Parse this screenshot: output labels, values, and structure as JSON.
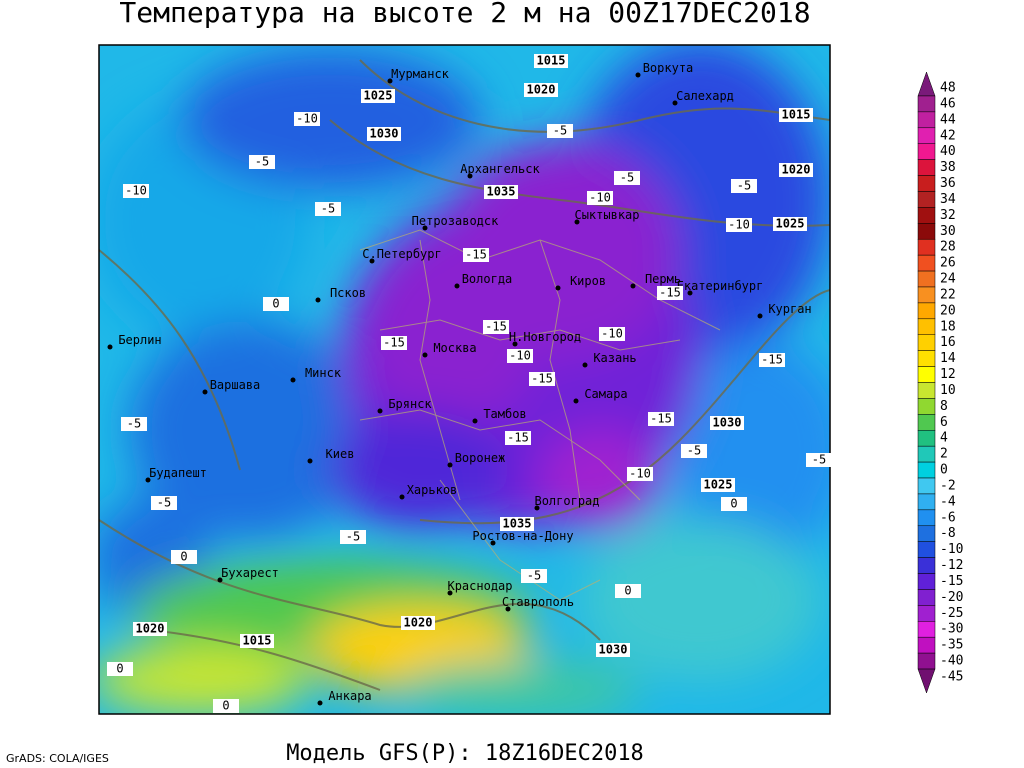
{
  "title": "Температура на высоте 2 м на 00Z17DEC2018",
  "footer_left": "GrADS: COLA/IGES",
  "footer": "Модель GFS(P): 18Z16DEC2018",
  "cities": [
    "Мурманск",
    "Воркута",
    "Салехард",
    "Архангельск",
    "Петрозаводск",
    "Сыктывкар",
    "С.Петербург",
    "Вологда",
    "Киров",
    "Пермь",
    "Екатеринбург",
    "Курган",
    "Псков",
    "Н.Новгород",
    "Берлин",
    "Москва",
    "Казань",
    "Минск",
    "Варшава",
    "Самара",
    "Брянск",
    "Тамбов",
    "Киев",
    "Воронеж",
    "Будапешт",
    "Харьков",
    "Волгоград",
    "Ростов-на-Дону",
    "Бухарест",
    "Краснодар",
    "Ставрополь",
    "Анкара"
  ],
  "isotherm_labels": [
    -10,
    -10,
    -10,
    -10,
    -10,
    -10,
    -10,
    -5,
    -5,
    -5,
    -5,
    -5,
    -5,
    -5,
    -5,
    -5,
    -5,
    -5,
    -15,
    -15,
    -15,
    -15,
    -15,
    -15,
    -15,
    -15,
    0,
    0,
    0,
    0,
    0,
    0
  ],
  "isobar_labels": [
    1015,
    1015,
    1015,
    1020,
    1020,
    1020,
    1020,
    1025,
    1025,
    1025,
    1030,
    1030,
    1030,
    1035,
    1035
  ],
  "legend": {
    "levels": [
      48,
      46,
      44,
      42,
      40,
      38,
      36,
      34,
      32,
      30,
      28,
      26,
      24,
      22,
      20,
      18,
      16,
      14,
      12,
      10,
      8,
      6,
      4,
      2,
      0,
      -2,
      -4,
      -6,
      -8,
      -10,
      -12,
      -15,
      -20,
      -25,
      -30,
      -35,
      -40,
      -45
    ],
    "colors": [
      "#7a1a7a",
      "#a0208f",
      "#c020a0",
      "#e020b0",
      "#f01890",
      "#dc143c",
      "#c81e1e",
      "#b22222",
      "#a01010",
      "#8b0a0a",
      "#e03020",
      "#f05020",
      "#f07020",
      "#f89020",
      "#ffa800",
      "#ffc000",
      "#ffd000",
      "#ffe000",
      "#ffff00",
      "#c8e630",
      "#90d830",
      "#50c850",
      "#20c080",
      "#20c8b8",
      "#00d0e0",
      "#40c8f0",
      "#30b0f0",
      "#2090f0",
      "#1e70e0",
      "#2050e0",
      "#3a30d8",
      "#6020d8",
      "#8020d0",
      "#a020d0",
      "#e020e0",
      "#c010c0",
      "#901090",
      "#701070"
    ]
  }
}
